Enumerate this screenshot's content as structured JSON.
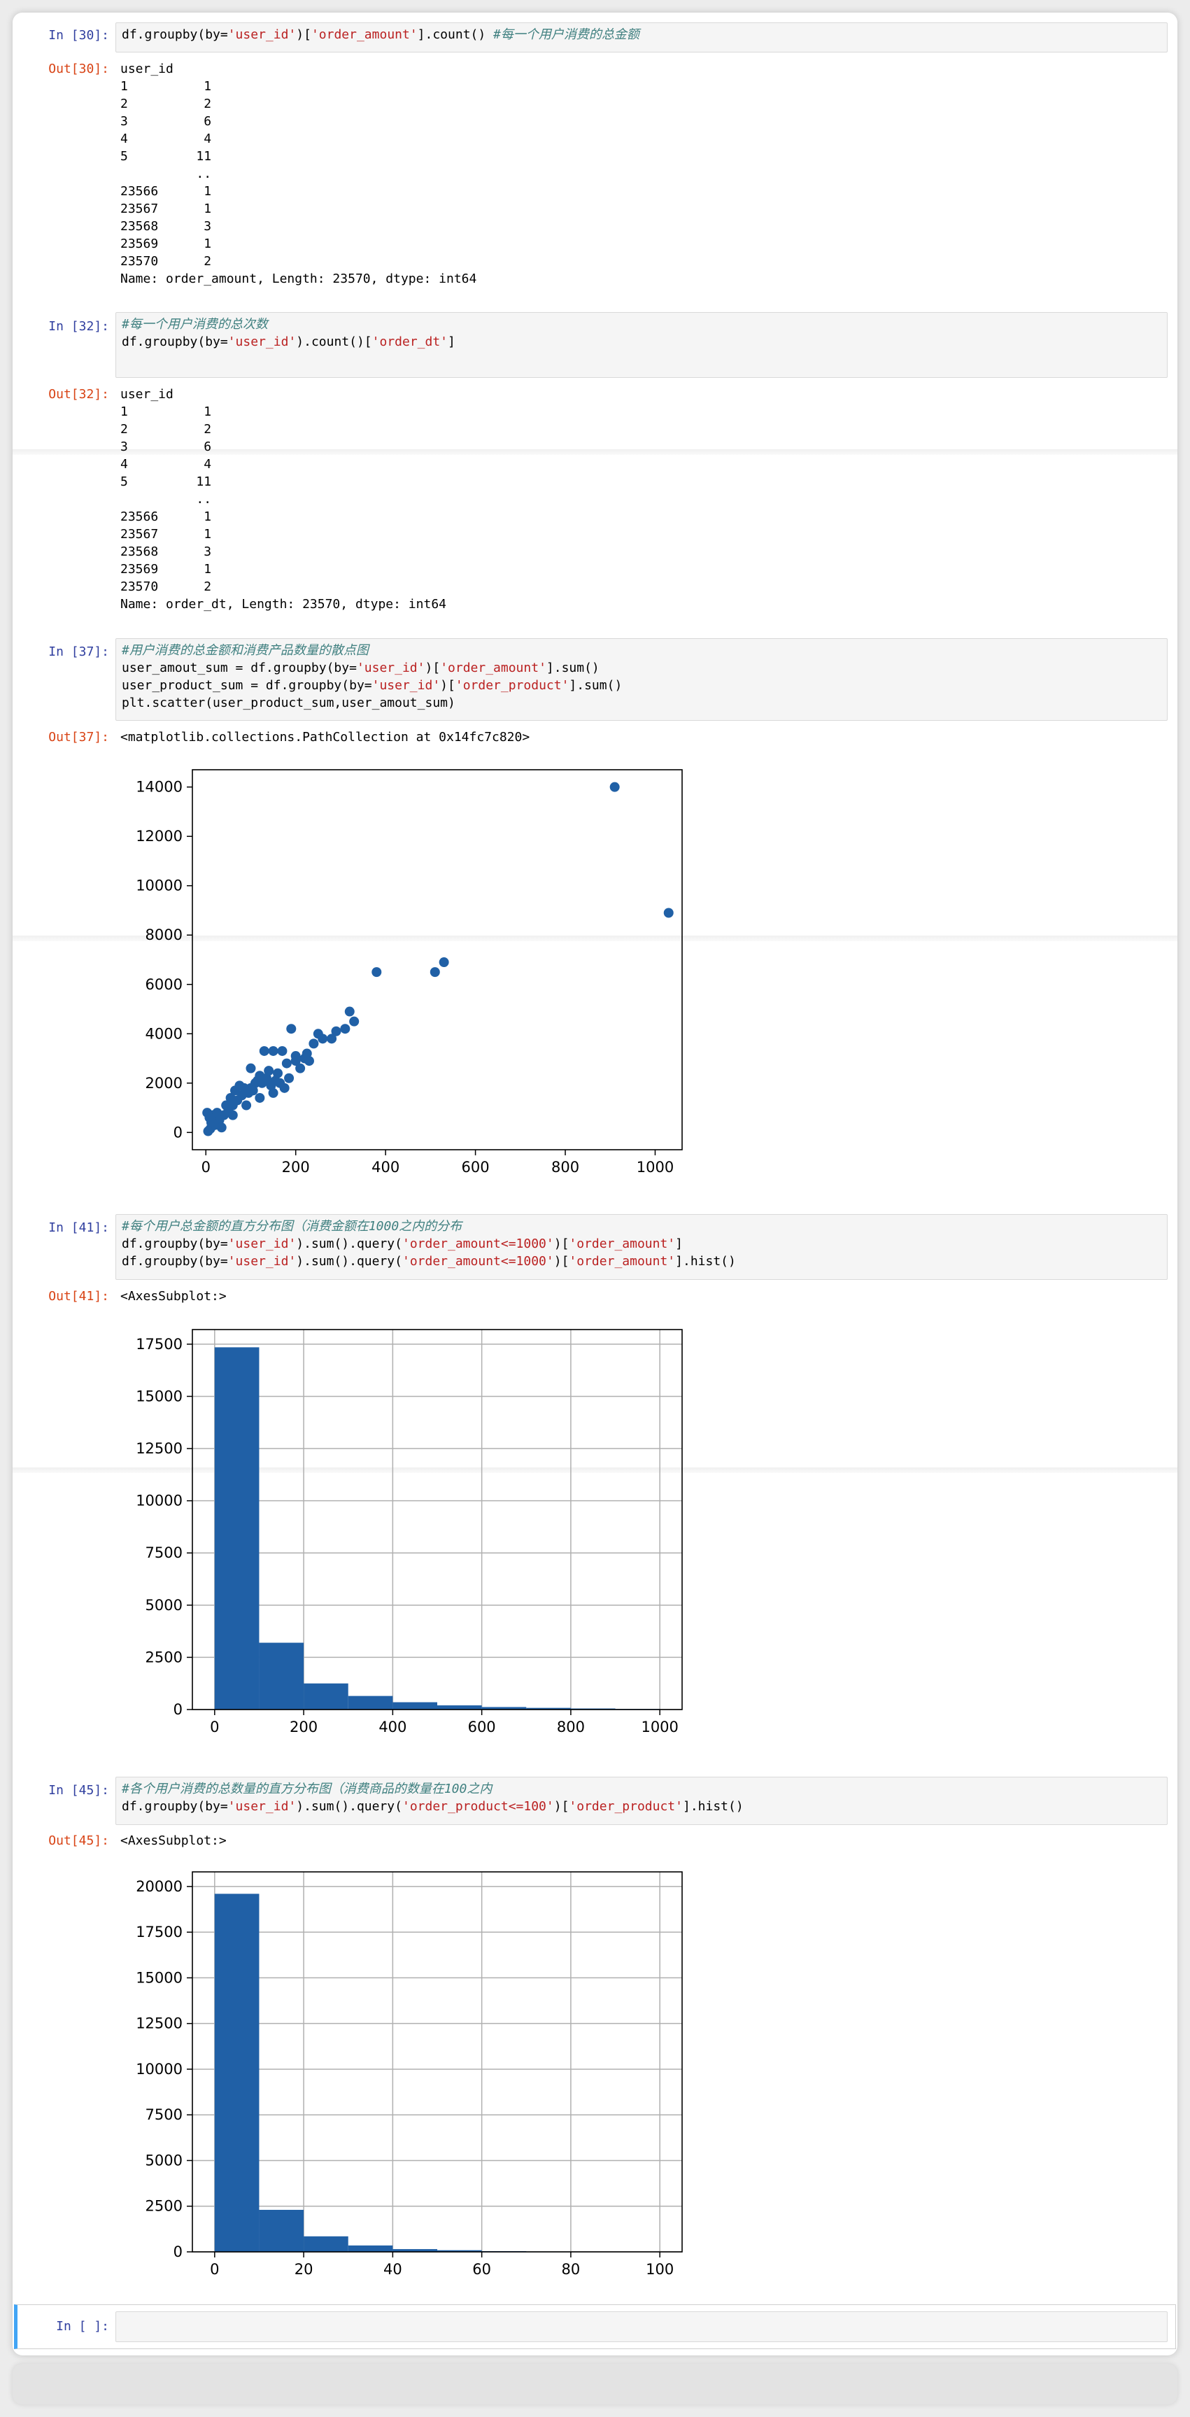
{
  "cells": {
    "c30": {
      "in_prompt": "In [30]:",
      "code": [
        [
          {
            "t": "df.groupby(by="
          },
          {
            "t": "'user_id'",
            "c": "str"
          },
          {
            "t": ")["
          },
          {
            "t": "'order_amount'",
            "c": "str"
          },
          {
            "t": "].count() "
          },
          {
            "t": "#每一个用户消费的总金额",
            "c": "cm"
          }
        ]
      ],
      "out_prompt": "Out[30]:",
      "output": [
        "user_id",
        "1          1",
        "2          2",
        "3          6",
        "4          4",
        "5         11",
        "          ..",
        "23566      1",
        "23567      1",
        "23568      3",
        "23569      1",
        "23570      2",
        "Name: order_amount, Length: 23570, dtype: int64"
      ]
    },
    "c32": {
      "in_prompt": "In [32]:",
      "code": [
        [
          {
            "t": "#每一个用户消费的总次数",
            "c": "cm"
          }
        ],
        [
          {
            "t": "df.groupby(by="
          },
          {
            "t": "'user_id'",
            "c": "str"
          },
          {
            "t": ").count()["
          },
          {
            "t": "'order_dt'",
            "c": "str"
          },
          {
            "t": "]"
          }
        ]
      ],
      "out_prompt": "Out[32]:",
      "output": [
        "user_id",
        "1          1",
        "2          2",
        "3          6",
        "4          4",
        "5         11",
        "          ..",
        "23566      1",
        "23567      1",
        "23568      3",
        "23569      1",
        "23570      2",
        "Name: order_dt, Length: 23570, dtype: int64"
      ]
    },
    "c37": {
      "in_prompt": "In [37]:",
      "code": [
        [
          {
            "t": "#用户消费的总金额和消费产品数量的散点图",
            "c": "cm"
          }
        ],
        [
          {
            "t": "user_amout_sum = df.groupby(by="
          },
          {
            "t": "'user_id'",
            "c": "str"
          },
          {
            "t": ")["
          },
          {
            "t": "'order_amount'",
            "c": "str"
          },
          {
            "t": "].sum()"
          }
        ],
        [
          {
            "t": "user_product_sum = df.groupby(by="
          },
          {
            "t": "'user_id'",
            "c": "str"
          },
          {
            "t": ")["
          },
          {
            "t": "'order_product'",
            "c": "str"
          },
          {
            "t": "].sum()"
          }
        ],
        [
          {
            "t": "plt.scatter(user_product_sum,user_amout_sum)"
          }
        ]
      ],
      "out_prompt": "Out[37]:",
      "output": [
        "<matplotlib.collections.PathCollection at 0x14fc7c820>"
      ]
    },
    "c41": {
      "in_prompt": "In [41]:",
      "code": [
        [
          {
            "t": "#每个用户总金额的直方分布图（消费金额在1000之内的分布",
            "c": "cm"
          }
        ],
        [
          {
            "t": "df.groupby(by="
          },
          {
            "t": "'user_id'",
            "c": "str"
          },
          {
            "t": ").sum().query("
          },
          {
            "t": "'order_amount<=1000'",
            "c": "str"
          },
          {
            "t": ")["
          },
          {
            "t": "'order_amount'",
            "c": "str"
          },
          {
            "t": "]"
          }
        ],
        [
          {
            "t": "df.groupby(by="
          },
          {
            "t": "'user_id'",
            "c": "str"
          },
          {
            "t": ").sum().query("
          },
          {
            "t": "'order_amount<=1000'",
            "c": "str"
          },
          {
            "t": ")["
          },
          {
            "t": "'order_amount'",
            "c": "str"
          },
          {
            "t": "].hist()"
          }
        ]
      ],
      "out_prompt": "Out[41]:",
      "output": [
        "<AxesSubplot:>"
      ]
    },
    "c45": {
      "in_prompt": "In [45]:",
      "code": [
        [
          {
            "t": "#各个用户消费的总数量的直方分布图（消费商品的数量在100之内",
            "c": "cm"
          }
        ],
        [
          {
            "t": "df.groupby(by="
          },
          {
            "t": "'user_id'",
            "c": "str"
          },
          {
            "t": ").sum().query("
          },
          {
            "t": "'order_product<=100'",
            "c": "str"
          },
          {
            "t": ")["
          },
          {
            "t": "'order_product'",
            "c": "str"
          },
          {
            "t": "].hist()"
          }
        ]
      ],
      "out_prompt": "Out[45]:",
      "output": [
        "<AxesSubplot:>"
      ]
    },
    "empty": {
      "in_prompt": "In [ ]:"
    }
  },
  "colors": {
    "mark": "#2060a6",
    "in_prompt": "#303f9f",
    "out_prompt": "#d84315",
    "string": "#ba2121",
    "comment": "#408080"
  },
  "chart_data": [
    {
      "type": "scatter",
      "xlim": [
        -30,
        1060
      ],
      "ylim": [
        -700,
        14700
      ],
      "xticks": [
        0,
        200,
        400,
        600,
        800,
        1000
      ],
      "yticks": [
        0,
        2000,
        4000,
        6000,
        8000,
        10000,
        12000,
        14000
      ],
      "grid": false,
      "points": [
        [
          910,
          14000
        ],
        [
          1030,
          8900
        ],
        [
          530,
          6900
        ],
        [
          510,
          6500
        ],
        [
          380,
          6500
        ],
        [
          320,
          4900
        ],
        [
          330,
          4500
        ],
        [
          310,
          4200
        ],
        [
          290,
          4100
        ],
        [
          280,
          3800
        ],
        [
          250,
          4000
        ],
        [
          260,
          3800
        ],
        [
          240,
          3600
        ],
        [
          220,
          3000
        ],
        [
          200,
          3100
        ],
        [
          190,
          4200
        ],
        [
          170,
          3300
        ],
        [
          150,
          3300
        ],
        [
          130,
          3300
        ],
        [
          200,
          2900
        ],
        [
          180,
          2800
        ],
        [
          160,
          2400
        ],
        [
          140,
          2500
        ],
        [
          120,
          2300
        ],
        [
          110,
          2000
        ],
        [
          100,
          1800
        ],
        [
          90,
          1700
        ],
        [
          80,
          1500
        ],
        [
          70,
          1300
        ],
        [
          60,
          1100
        ],
        [
          50,
          900
        ],
        [
          40,
          700
        ],
        [
          30,
          500
        ],
        [
          20,
          300
        ],
        [
          10,
          150
        ],
        [
          5,
          50
        ],
        [
          15,
          700
        ],
        [
          25,
          800
        ],
        [
          45,
          1100
        ],
        [
          55,
          1400
        ],
        [
          65,
          1700
        ],
        [
          75,
          1900
        ],
        [
          85,
          1800
        ],
        [
          95,
          1600
        ],
        [
          105,
          1700
        ],
        [
          115,
          2100
        ],
        [
          125,
          2000
        ],
        [
          135,
          2200
        ],
        [
          145,
          1900
        ],
        [
          155,
          2100
        ],
        [
          165,
          2000
        ],
        [
          175,
          1800
        ],
        [
          185,
          2200
        ],
        [
          210,
          2600
        ],
        [
          230,
          2900
        ],
        [
          225,
          3200
        ],
        [
          35,
          200
        ],
        [
          12,
          400
        ],
        [
          8,
          600
        ],
        [
          3,
          800
        ],
        [
          60,
          700
        ],
        [
          90,
          1100
        ],
        [
          120,
          1400
        ],
        [
          150,
          1600
        ],
        [
          100,
          2600
        ]
      ]
    },
    {
      "type": "bar",
      "xlim": [
        -50,
        1050
      ],
      "ylim": [
        0,
        18200
      ],
      "xticks": [
        0,
        200,
        400,
        600,
        800,
        1000
      ],
      "yticks": [
        0,
        2500,
        5000,
        7500,
        10000,
        12500,
        15000,
        17500
      ],
      "grid": true,
      "bin_edges": [
        0,
        100,
        200,
        300,
        400,
        500,
        600,
        700,
        800,
        900,
        1000
      ],
      "values": [
        17350,
        3200,
        1250,
        650,
        350,
        200,
        120,
        80,
        50,
        30
      ]
    },
    {
      "type": "bar",
      "xlim": [
        -5,
        105
      ],
      "ylim": [
        0,
        20800
      ],
      "xticks": [
        0,
        20,
        40,
        60,
        80,
        100
      ],
      "yticks": [
        0,
        2500,
        5000,
        7500,
        10000,
        12500,
        15000,
        17500,
        20000
      ],
      "grid": true,
      "bin_edges": [
        0,
        10,
        20,
        30,
        40,
        50,
        60,
        70,
        80,
        90,
        100
      ],
      "values": [
        19600,
        2300,
        850,
        350,
        150,
        90,
        40,
        20,
        10,
        5
      ]
    }
  ]
}
